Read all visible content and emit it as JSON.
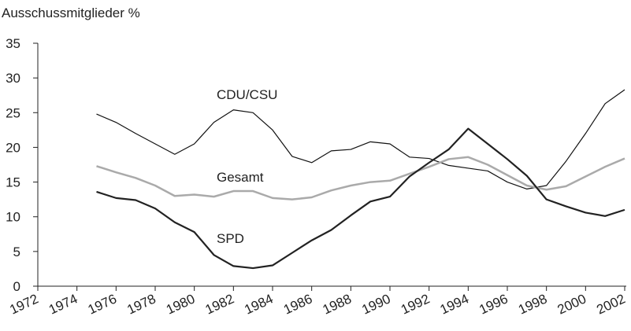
{
  "chart_data": {
    "type": "line",
    "y_label": "Ausschussmitglieder %",
    "x": [
      1975,
      1976,
      1977,
      1978,
      1979,
      1980,
      1981,
      1982,
      1983,
      1984,
      1985,
      1986,
      1987,
      1988,
      1989,
      1990,
      1991,
      1992,
      1993,
      1994,
      1995,
      1996,
      1997,
      1998,
      1999,
      2000,
      2001,
      2002
    ],
    "series": [
      {
        "name": "CDU/CSU",
        "color": "#111111",
        "values": [
          24.8,
          23.6,
          22.0,
          20.5,
          19.0,
          20.5,
          23.6,
          25.4,
          25.0,
          22.5,
          18.7,
          17.8,
          19.5,
          19.7,
          20.8,
          20.5,
          18.6,
          18.4,
          17.4,
          17.0,
          16.6,
          15.0,
          14.0,
          14.5,
          18.0,
          22.0,
          26.3,
          28.3
        ]
      },
      {
        "name": "Gesamt",
        "color": "#aaaaaa",
        "values": [
          17.3,
          16.4,
          15.6,
          14.5,
          13.0,
          13.2,
          12.9,
          13.7,
          13.7,
          12.7,
          12.5,
          12.8,
          13.8,
          14.5,
          15.0,
          15.2,
          16.2,
          17.2,
          18.3,
          18.6,
          17.5,
          16.0,
          14.5,
          13.9,
          14.4,
          15.8,
          17.2,
          18.4
        ]
      },
      {
        "name": "SPD",
        "color": "#222222",
        "values": [
          13.6,
          12.7,
          12.4,
          11.2,
          9.2,
          7.8,
          4.5,
          2.9,
          2.6,
          3.0,
          4.8,
          6.6,
          8.1,
          10.2,
          12.2,
          12.9,
          15.8,
          17.8,
          19.7,
          22.7,
          20.5,
          18.3,
          15.9,
          12.5,
          11.5,
          10.6,
          10.1,
          11.0
        ]
      }
    ],
    "xlim": [
      1972,
      2002
    ],
    "xticks": [
      1972,
      1974,
      1976,
      1978,
      1980,
      1982,
      1984,
      1986,
      1988,
      1990,
      1992,
      1994,
      1996,
      1998,
      2000,
      2002
    ],
    "ylim": [
      0,
      35
    ],
    "yticks": [
      0,
      5,
      10,
      15,
      20,
      25,
      30,
      35
    ],
    "grid": false
  }
}
